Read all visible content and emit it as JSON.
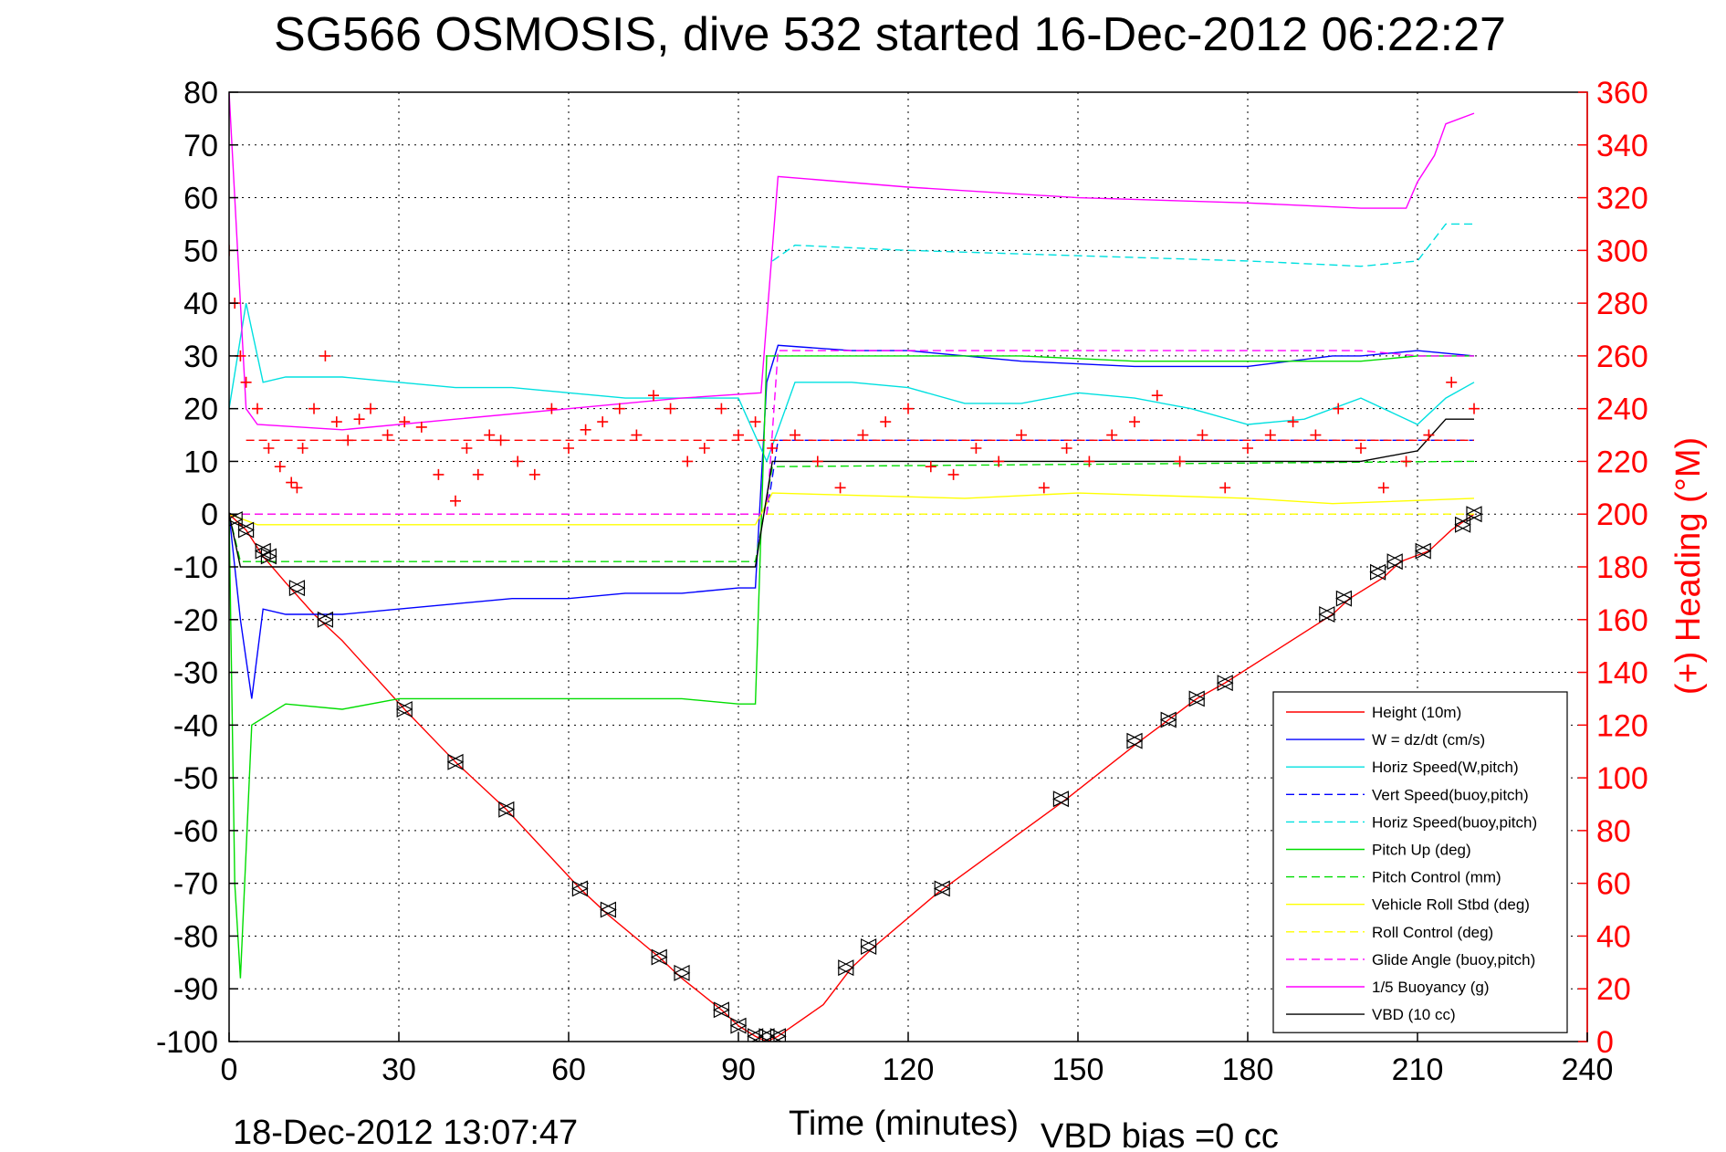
{
  "chart_data": {
    "type": "line",
    "title": "SG566 OSMOSIS, dive 532 started 16-Dec-2012 06:22:27",
    "xlabel": "Time (minutes)",
    "ylabel_right": "(+) Heading (°M)",
    "footer_left": "18-Dec-2012 13:07:47",
    "footer_right": "VBD bias =0 cc",
    "xlim": [
      0,
      240
    ],
    "ylim": [
      -100,
      80
    ],
    "ylim_right": [
      0,
      360
    ],
    "x_ticks": [
      0,
      30,
      60,
      90,
      120,
      150,
      180,
      210,
      240
    ],
    "y_ticks": [
      80,
      70,
      60,
      50,
      40,
      30,
      20,
      10,
      0,
      -10,
      -20,
      -30,
      -40,
      -50,
      -60,
      -70,
      -80,
      -90,
      -100
    ],
    "y_ticks_right": [
      360,
      340,
      320,
      300,
      280,
      260,
      240,
      220,
      200,
      180,
      160,
      140,
      120,
      100,
      80,
      60,
      40,
      20,
      0
    ],
    "grid": true,
    "legend_position": "bottom-right",
    "series": [
      {
        "name": "Height (10m)",
        "color": "#ff0000",
        "style": "solid",
        "x": [
          0,
          1,
          3,
          6,
          10,
          15,
          20,
          31,
          40,
          49,
          62,
          67,
          76,
          80,
          87,
          90,
          93,
          95,
          97,
          105,
          110,
          114,
          125,
          148,
          161,
          166,
          171,
          176,
          195,
          198,
          204,
          207,
          212,
          216,
          220
        ],
        "y": [
          0,
          -1,
          -3,
          -8,
          -13,
          -19,
          -24,
          -37,
          -47,
          -56,
          -71,
          -76,
          -84,
          -88,
          -94,
          -97,
          -99,
          -100,
          -99,
          -93,
          -86,
          -82,
          -72,
          -54,
          -43,
          -39,
          -35,
          -32,
          -19,
          -16,
          -12,
          -9,
          -7,
          -3,
          0
        ]
      },
      {
        "name": "W = dz/dt (cm/s)",
        "color": "#0000ff",
        "style": "solid",
        "x": [
          0,
          2,
          4,
          6,
          10,
          20,
          30,
          40,
          50,
          60,
          70,
          80,
          90,
          93,
          95,
          97,
          110,
          120,
          140,
          160,
          180,
          195,
          200,
          210,
          220
        ],
        "y": [
          0,
          -20,
          -35,
          -18,
          -19,
          -19,
          -18,
          -17,
          -16,
          -16,
          -15,
          -15,
          -14,
          -14,
          25,
          32,
          31,
          31,
          29,
          28,
          28,
          30,
          30,
          31,
          30
        ]
      },
      {
        "name": "Horiz Speed(W,pitch)",
        "color": "#00e0e0",
        "style": "solid",
        "x": [
          0,
          3,
          6,
          10,
          20,
          30,
          40,
          50,
          60,
          70,
          80,
          90,
          95,
          100,
          110,
          120,
          130,
          140,
          150,
          160,
          170,
          180,
          190,
          200,
          210,
          215,
          220
        ],
        "y": [
          20,
          40,
          25,
          26,
          26,
          25,
          24,
          24,
          23,
          22,
          22,
          22,
          10,
          25,
          25,
          24,
          21,
          21,
          23,
          22,
          20,
          17,
          18,
          22,
          17,
          22,
          25
        ]
      },
      {
        "name": "Vert Speed(buoy,pitch)",
        "color": "#0000ff",
        "style": "dashed",
        "x": [
          0,
          95,
          97,
          220
        ],
        "y": [
          0,
          0,
          14,
          14
        ]
      },
      {
        "name": "Horiz Speed(buoy,pitch)",
        "color": "#00e0e0",
        "style": "dashed",
        "x": [
          96,
          100,
          120,
          150,
          180,
          200,
          210,
          215,
          220
        ],
        "y": [
          48,
          51,
          50,
          49,
          48,
          47,
          48,
          55,
          55
        ]
      },
      {
        "name": "Pitch Up (deg)",
        "color": "#00dd00",
        "style": "solid",
        "x": [
          0,
          1,
          2,
          4,
          10,
          20,
          30,
          40,
          50,
          60,
          70,
          80,
          90,
          93,
          95,
          97,
          110,
          120,
          140,
          160,
          180,
          200,
          210,
          220
        ],
        "y": [
          0,
          -70,
          -88,
          -40,
          -36,
          -37,
          -35,
          -35,
          -35,
          -35,
          -35,
          -35,
          -36,
          -36,
          30,
          30,
          30,
          30,
          30,
          29,
          29,
          29,
          30,
          30
        ]
      },
      {
        "name": "Pitch Control (mm)",
        "color": "#00dd00",
        "style": "dashed",
        "x": [
          0,
          2,
          93,
          96,
          220
        ],
        "y": [
          0,
          -9,
          -9,
          9,
          10
        ]
      },
      {
        "name": "Vehicle Roll Stbd (deg)",
        "color": "#ffff00",
        "style": "solid",
        "x": [
          0,
          5,
          50,
          93,
          96,
          130,
          150,
          180,
          195,
          220
        ],
        "y": [
          0,
          -2,
          -2,
          -2,
          4,
          3,
          4,
          3,
          2,
          3
        ]
      },
      {
        "name": "Roll Control (deg)",
        "color": "#ffff00",
        "style": "dashed",
        "x": [
          0,
          93,
          96,
          220
        ],
        "y": [
          0,
          0,
          0,
          0
        ]
      },
      {
        "name": "Glide Angle (buoy,pitch)",
        "color": "#ff00ff",
        "style": "dashed",
        "x": [
          0,
          95,
          97,
          150,
          200,
          210,
          220
        ],
        "y": [
          0,
          0,
          31,
          31,
          31,
          30,
          30
        ]
      },
      {
        "name": "1/5 Buoyancy (g)",
        "color": "#ff00ff",
        "style": "solid",
        "x": [
          0,
          3,
          5,
          20,
          40,
          60,
          80,
          94,
          97,
          120,
          150,
          180,
          200,
          208,
          210,
          213,
          215,
          220
        ],
        "y": [
          80,
          20,
          17,
          16,
          18,
          20,
          22,
          23,
          64,
          62,
          60,
          59,
          58,
          58,
          63,
          68,
          74,
          76
        ]
      },
      {
        "name": "VBD (10 cc)",
        "color": "#000000",
        "style": "solid",
        "x": [
          0,
          2,
          93,
          96,
          200,
          210,
          215,
          220
        ],
        "y": [
          0,
          -10,
          -10,
          10,
          10,
          12,
          18,
          18
        ]
      }
    ],
    "heading": {
      "name": "(+) Heading",
      "color": "#ff0000",
      "marker": "+",
      "axis": "right",
      "mean": 228,
      "x": [
        0,
        1,
        2,
        3,
        5,
        7,
        9,
        11,
        12,
        13,
        15,
        17,
        19,
        21,
        23,
        25,
        28,
        31,
        34,
        37,
        40,
        42,
        44,
        46,
        48,
        51,
        54,
        57,
        60,
        63,
        66,
        69,
        72,
        75,
        78,
        81,
        84,
        87,
        90,
        93,
        96,
        100,
        104,
        108,
        112,
        116,
        120,
        124,
        128,
        132,
        136,
        140,
        144,
        148,
        152,
        156,
        160,
        164,
        168,
        172,
        176,
        180,
        184,
        188,
        192,
        196,
        200,
        204,
        208,
        212,
        216,
        220
      ],
      "y": [
        300,
        280,
        260,
        250,
        240,
        225,
        218,
        212,
        210,
        225,
        240,
        260,
        235,
        228,
        236,
        240,
        230,
        235,
        233,
        215,
        205,
        225,
        215,
        230,
        228,
        220,
        215,
        240,
        225,
        232,
        235,
        240,
        230,
        245,
        240,
        220,
        225,
        240,
        230,
        235,
        225,
        230,
        220,
        210,
        230,
        235,
        240,
        218,
        215,
        225,
        220,
        230,
        210,
        225,
        220,
        230,
        235,
        245,
        220,
        230,
        210,
        225,
        230,
        235,
        230,
        240,
        225,
        210,
        220,
        230,
        250,
        240
      ]
    },
    "markers": {
      "name": "Height sample markers",
      "x": [
        1,
        3,
        6,
        7,
        12,
        17,
        31,
        40,
        49,
        62,
        67,
        76,
        80,
        87,
        90,
        93,
        95,
        97,
        109,
        113,
        126,
        147,
        160,
        166,
        171,
        176,
        194,
        197,
        203,
        206,
        211,
        218,
        220
      ],
      "y": [
        -1,
        -3,
        -7,
        -8,
        -14,
        -20,
        -37,
        -47,
        -56,
        -71,
        -75,
        -84,
        -87,
        -94,
        -97,
        -99,
        -99,
        -99,
        -86,
        -82,
        -71,
        -54,
        -43,
        -39,
        -35,
        -32,
        -19,
        -16,
        -11,
        -9,
        -7,
        -2,
        0
      ]
    }
  }
}
